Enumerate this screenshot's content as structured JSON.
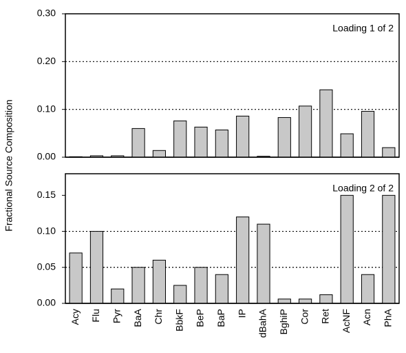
{
  "chart_data": {
    "type": "bar",
    "ylabel": "Fractional Source Composition",
    "color": "#c8c8c8",
    "categories": [
      "Acy",
      "Flu",
      "Pyr",
      "BaA",
      "Chr",
      "BbkF",
      "BeP",
      "BaP",
      "IP",
      "dBahA",
      "BghiP",
      "Cor",
      "Ret",
      "AcNF",
      "Acn",
      "PhA"
    ],
    "panels": [
      {
        "annotation": "Loading 1 of 2",
        "ylim": [
          0,
          0.3
        ],
        "yticks": [
          {
            "value": 0,
            "label": "0.00"
          },
          {
            "value": 0.1,
            "label": "0.10"
          },
          {
            "value": 0.2,
            "label": "0.20"
          },
          {
            "value": 0.3,
            "label": "0.30"
          }
        ],
        "values": [
          0.001,
          0.003,
          0.003,
          0.06,
          0.014,
          0.076,
          0.063,
          0.057,
          0.086,
          0.002,
          0.083,
          0.107,
          0.141,
          0.049,
          0.096,
          0.02
        ]
      },
      {
        "annotation": "Loading 2 of 2",
        "ylim": [
          0,
          0.18
        ],
        "yticks": [
          {
            "value": 0,
            "label": "0.00"
          },
          {
            "value": 0.05,
            "label": "0.05"
          },
          {
            "value": 0.1,
            "label": "0.10"
          },
          {
            "value": 0.15,
            "label": "0.15"
          }
        ],
        "values": [
          0.07,
          0.1,
          0.02,
          0.05,
          0.06,
          0.025,
          0.05,
          0.04,
          0.12,
          0.11,
          0.006,
          0.006,
          0.012,
          0.15,
          0.04,
          0.15
        ]
      }
    ]
  }
}
